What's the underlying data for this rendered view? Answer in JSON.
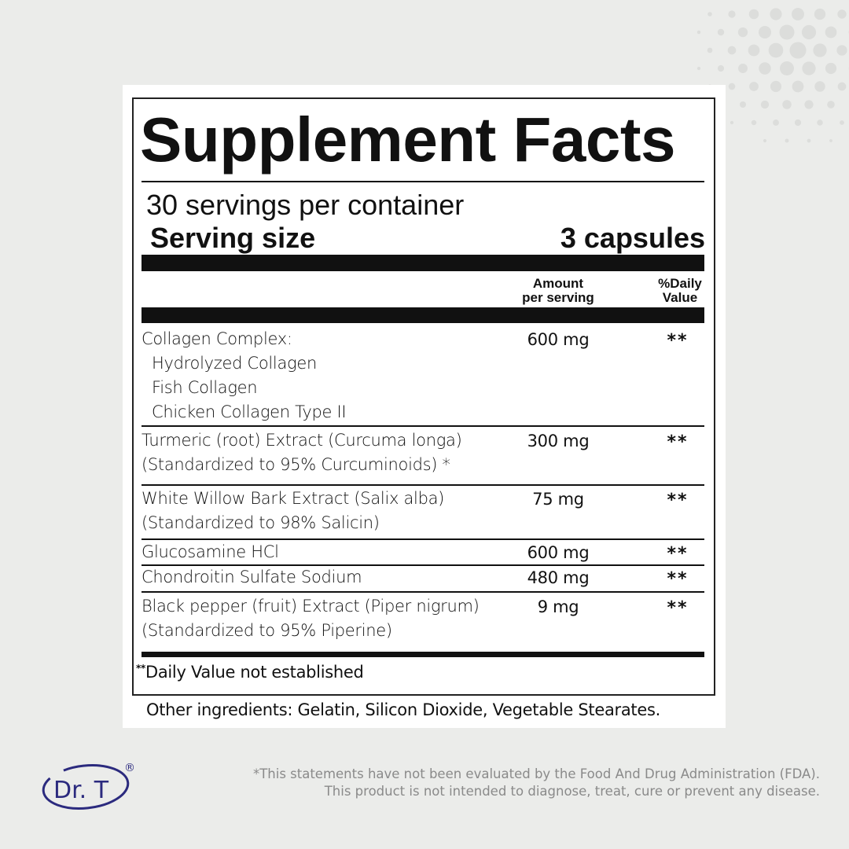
{
  "label": {
    "title": "Supplement Facts",
    "servings_per_container": "30 servings per container",
    "serving_size_label": "Serving size",
    "serving_size_value": "3 capsules",
    "col_amount": [
      "Amount",
      "per serving"
    ],
    "col_dv": [
      "%Daily",
      "Value"
    ],
    "rows": [
      {
        "lines": [
          "Collagen Complex:",
          "  Hydrolyzed Collagen",
          "  Fish Collagen",
          "  Chicken Collagen Type II"
        ],
        "amount": "600 mg",
        "dv": "**"
      },
      {
        "lines": [
          "Turmeric (root) Extract (Curcuma longa)",
          "(Standardized to 95% Curcuminoids) *"
        ],
        "amount": "300 mg",
        "dv": "**"
      },
      {
        "lines": [
          "White Willow Bark Extract (Salix alba)",
          "(Standardized to 98% Salicin)"
        ],
        "amount": "75 mg",
        "dv": "**"
      },
      {
        "lines": [
          "Glucosamine HCl"
        ],
        "amount": "600 mg",
        "dv": "**"
      },
      {
        "lines": [
          "Chondroitin Sulfate Sodium"
        ],
        "amount": "480 mg",
        "dv": "**"
      },
      {
        "lines": [
          "Black pepper (fruit) Extract (Piper nigrum)",
          "(Standardized to 95% Piperine)"
        ],
        "amount": "9 mg",
        "dv": "**"
      }
    ],
    "footnote_mark": "**",
    "footnote": "Daily Value not established",
    "other_ingredients": "Other ingredients: Gelatin, Silicon Dioxide, Vegetable Stearates."
  },
  "disclaimer": [
    "*This statements have not been evaluated by the Food And Drug Administration (FDA).",
    "This product is not intended to diagnose, treat, cure or prevent any disease."
  ],
  "brand": {
    "logo_text": "Dr. T",
    "registered": "®",
    "color": "#2b2a7e"
  }
}
